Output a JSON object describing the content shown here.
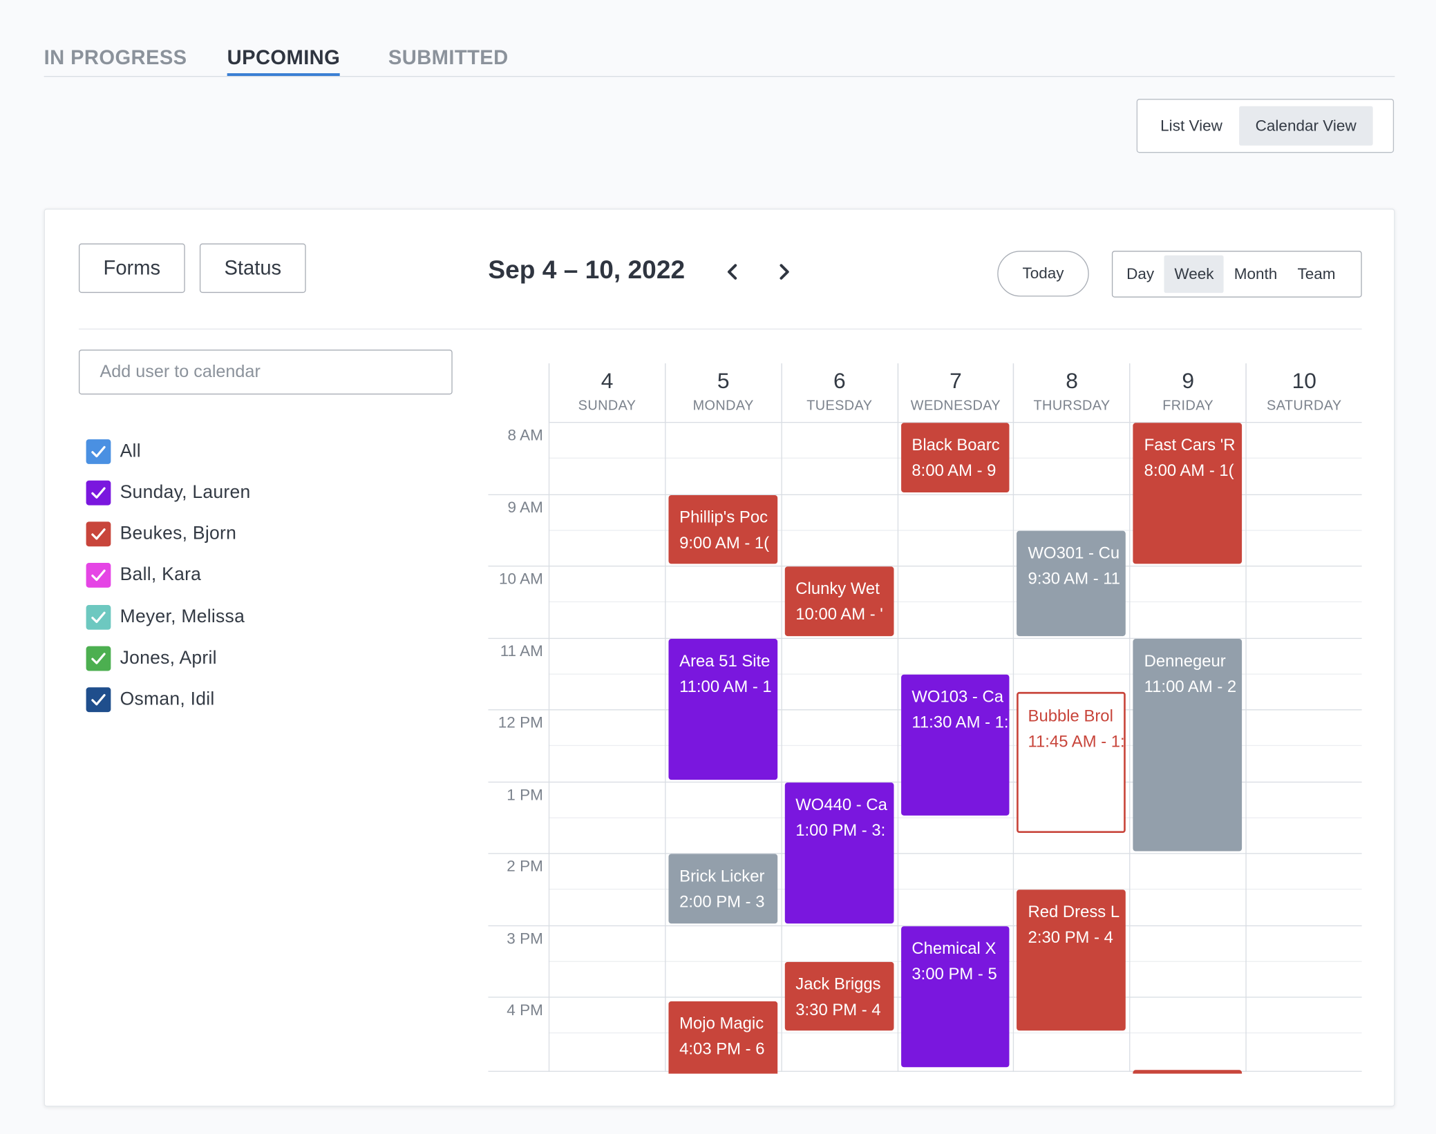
{
  "tabs": [
    {
      "label": "IN PROGRESS",
      "active": false
    },
    {
      "label": "UPCOMING",
      "active": true
    },
    {
      "label": "SUBMITTED",
      "active": false
    }
  ],
  "view_toggle": {
    "list": "List View",
    "calendar": "Calendar View",
    "selected": "Calendar View"
  },
  "filters": {
    "forms": "Forms",
    "status": "Status"
  },
  "calendar": {
    "date_range": "Sep 4 – 10, 2022",
    "today": "Today",
    "ranges": [
      "Day",
      "Week",
      "Month",
      "Team"
    ],
    "selected_range": "Week",
    "days": [
      {
        "num": "4",
        "name": "SUNDAY"
      },
      {
        "num": "5",
        "name": "MONDAY"
      },
      {
        "num": "6",
        "name": "TUESDAY"
      },
      {
        "num": "7",
        "name": "WEDNESDAY"
      },
      {
        "num": "8",
        "name": "THURSDAY"
      },
      {
        "num": "9",
        "name": "FRIDAY"
      },
      {
        "num": "10",
        "name": "SATURDAY"
      }
    ],
    "hours": [
      "8 AM",
      "9 AM",
      "10 AM",
      "11 AM",
      "12 PM",
      "1 PM",
      "2 PM",
      "3 PM",
      "4 PM"
    ],
    "events": [
      {
        "day": 3,
        "start": 8.0,
        "end": 9.0,
        "title": "Black Boarc",
        "time": "8:00 AM - 9",
        "style": "red"
      },
      {
        "day": 5,
        "start": 8.0,
        "end": 10.0,
        "title": "Fast Cars 'R",
        "time": "8:00 AM - 1(",
        "style": "red"
      },
      {
        "day": 1,
        "start": 9.0,
        "end": 10.0,
        "title": "Phillip's Poc",
        "time": "9:00 AM - 1(",
        "style": "red"
      },
      {
        "day": 4,
        "start": 9.5,
        "end": 11.0,
        "title": "WO301 - Cu",
        "time": "9:30 AM - 11",
        "style": "gray"
      },
      {
        "day": 2,
        "start": 10.0,
        "end": 11.0,
        "title": "Clunky Wet",
        "time": "10:00 AM - '",
        "style": "red"
      },
      {
        "day": 1,
        "start": 11.0,
        "end": 13.0,
        "title": "Area 51 Site",
        "time": "11:00 AM - 1",
        "style": "purple"
      },
      {
        "day": 5,
        "start": 11.0,
        "end": 14.0,
        "title": "Dennegeur",
        "time": "11:00 AM - 2",
        "style": "gray"
      },
      {
        "day": 3,
        "start": 11.5,
        "end": 13.5,
        "title": "WO103 - Ca",
        "time": "11:30 AM - 1:",
        "style": "purple"
      },
      {
        "day": 4,
        "start": 11.75,
        "end": 13.75,
        "title": "Bubble Brol",
        "time": "11:45 AM - 1:",
        "style": "outline"
      },
      {
        "day": 2,
        "start": 13.0,
        "end": 15.0,
        "title": "WO440 - Ca",
        "time": "1:00 PM - 3:",
        "style": "purple"
      },
      {
        "day": 1,
        "start": 14.0,
        "end": 15.0,
        "title": "Brick Licker",
        "time": "2:00 PM - 3",
        "style": "gray"
      },
      {
        "day": 4,
        "start": 14.5,
        "end": 16.5,
        "title": "Red Dress L",
        "time": "2:30 PM - 4",
        "style": "red"
      },
      {
        "day": 3,
        "start": 15.0,
        "end": 17.0,
        "title": "Chemical X",
        "time": "3:00 PM - 5",
        "style": "purple"
      },
      {
        "day": 2,
        "start": 15.5,
        "end": 16.5,
        "title": "Jack Briggs",
        "time": "3:30 PM - 4",
        "style": "red"
      },
      {
        "day": 1,
        "start": 16.05,
        "end": 18.0,
        "title": "Mojo Magic",
        "time": "4:03 PM - 6",
        "style": "red"
      },
      {
        "day": 5,
        "start": 17.0,
        "end": 18.0,
        "title": "",
        "time": "",
        "style": "red"
      }
    ]
  },
  "user_search": {
    "placeholder": "Add user to calendar",
    "value": ""
  },
  "users": [
    {
      "label": "All",
      "color": "#4a90e2",
      "checked": true
    },
    {
      "label": "Sunday, Lauren",
      "color": "#7a17de",
      "checked": true
    },
    {
      "label": "Beukes, Bjorn",
      "color": "#c8453b",
      "checked": true
    },
    {
      "label": "Ball, Kara",
      "color": "#e545e5",
      "checked": true
    },
    {
      "label": "Meyer, Melissa",
      "color": "#6dc8c0",
      "checked": true
    },
    {
      "label": "Jones, April",
      "color": "#4caf50",
      "checked": true
    },
    {
      "label": "Osman, Idil",
      "color": "#1f4e8c",
      "checked": true
    }
  ]
}
